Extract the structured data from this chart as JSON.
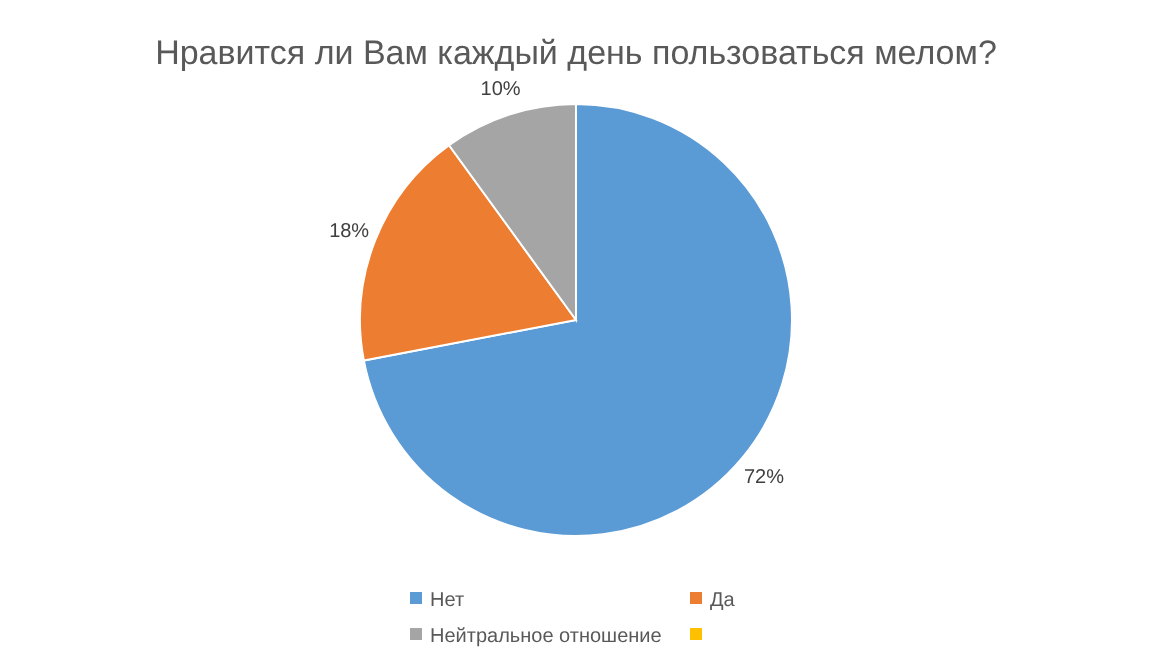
{
  "chart_data": {
    "type": "pie",
    "title": "Нравится ли Вам каждый день пользоваться мелом?",
    "categories": [
      "Нет",
      "Да",
      "Нейтральное отношение",
      null
    ],
    "values": [
      72,
      18,
      10,
      0
    ],
    "colors": [
      "#5b9bd5",
      "#ed7d31",
      "#a5a5a5",
      "#ffc000"
    ],
    "value_labels": [
      "72%",
      "18%",
      "10%",
      null
    ],
    "legend": "bottom"
  }
}
